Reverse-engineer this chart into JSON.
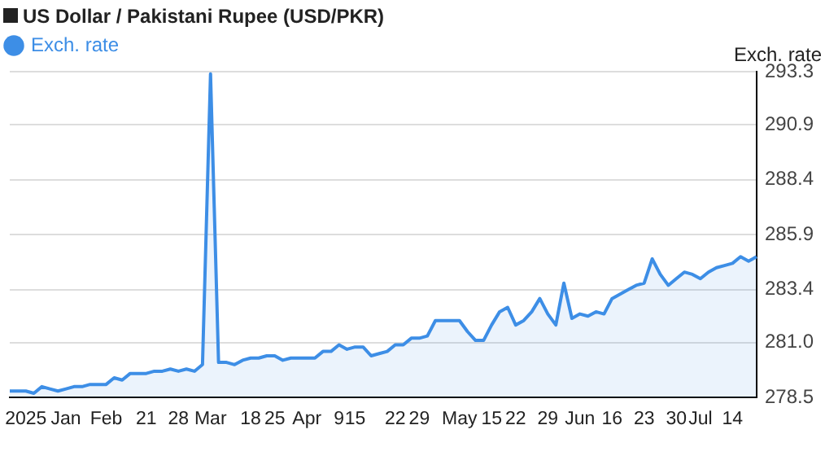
{
  "chart_data": {
    "type": "area",
    "title": "US Dollar / Pakistani Rupee (USD/PKR)",
    "ylabel": "Exch. rate",
    "categories": [
      null,
      null,
      "2025",
      null,
      null,
      null,
      null,
      "Jan",
      null,
      null,
      null,
      null,
      "Feb",
      null,
      null,
      null,
      null,
      "21",
      null,
      null,
      null,
      "28",
      null,
      null,
      null,
      "Mar",
      null,
      null,
      null,
      null,
      "18",
      null,
      null,
      "25",
      null,
      null,
      null,
      "Apr",
      null,
      null,
      null,
      "9",
      null,
      "15",
      null,
      null,
      null,
      null,
      "22",
      null,
      null,
      "29",
      null,
      null,
      null,
      null,
      "May",
      null,
      null,
      null,
      "15",
      null,
      null,
      "22",
      null,
      null,
      null,
      "29",
      null,
      null,
      null,
      "Jun",
      null,
      null,
      null,
      "16",
      null,
      null,
      null,
      "23",
      null,
      null,
      null,
      "30",
      null,
      null,
      "Jul",
      null,
      null,
      null,
      "14",
      null,
      null,
      null
    ],
    "series": [
      {
        "name": "Exch. rate",
        "color": "#3d8ee6",
        "values": [
          278.8,
          278.8,
          278.8,
          278.7,
          279.0,
          278.9,
          278.8,
          278.9,
          279.0,
          279.0,
          279.1,
          279.1,
          279.1,
          279.4,
          279.3,
          279.6,
          279.6,
          279.6,
          279.7,
          279.7,
          279.8,
          279.7,
          279.8,
          279.7,
          280.0,
          293.2,
          280.1,
          280.1,
          280.0,
          280.2,
          280.3,
          280.3,
          280.4,
          280.4,
          280.2,
          280.3,
          280.3,
          280.3,
          280.3,
          280.6,
          280.6,
          280.9,
          280.7,
          280.8,
          280.8,
          280.4,
          280.5,
          280.6,
          280.9,
          280.9,
          281.2,
          281.2,
          281.3,
          282.0,
          282.0,
          282.0,
          282.0,
          281.5,
          281.1,
          281.1,
          281.8,
          282.4,
          282.6,
          281.8,
          282.0,
          282.4,
          283.0,
          282.3,
          281.8,
          283.7,
          282.1,
          282.3,
          282.2,
          282.4,
          282.3,
          283.0,
          283.2,
          283.4,
          283.6,
          283.7,
          284.8,
          284.1,
          283.6,
          283.9,
          284.2,
          284.1,
          283.9,
          284.2,
          284.4,
          284.5,
          284.6,
          284.9,
          284.7,
          284.9
        ]
      }
    ],
    "ylim": [
      278.5,
      293.3
    ],
    "yticks": [
      {
        "value": 278.5,
        "label": "278.5"
      },
      {
        "value": 281,
        "label": "281.0"
      },
      {
        "value": 283.4,
        "label": "283.4"
      },
      {
        "value": 285.9,
        "label": "285.9"
      },
      {
        "value": 288.4,
        "label": "288.4"
      },
      {
        "value": 290.9,
        "label": "290.9"
      },
      {
        "value": 293.3,
        "label": "293.3"
      }
    ],
    "grid": "y",
    "legend": "top left",
    "marker": "none"
  }
}
